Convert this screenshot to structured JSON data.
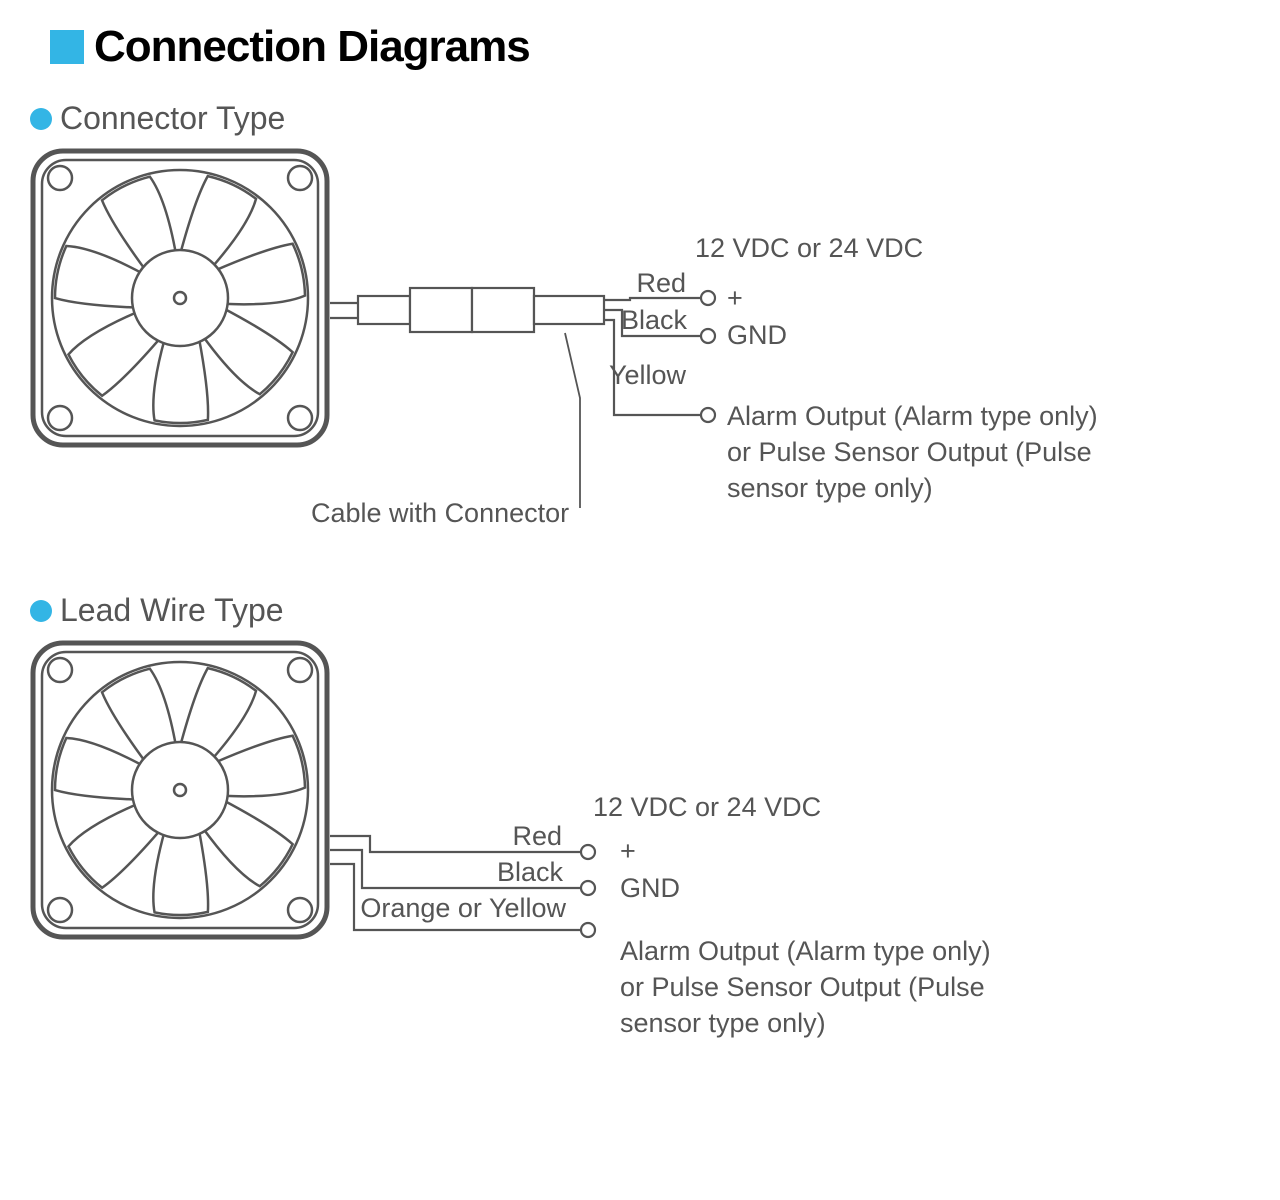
{
  "colors": {
    "accent": "#33b5e5",
    "text": "#555555",
    "title": "#000000",
    "stroke": "#555555",
    "bg": "#ffffff"
  },
  "title": "Connection Diagrams",
  "sections": {
    "connector": {
      "title": "Connector Type",
      "wires": [
        {
          "color": "Red",
          "signal": "+",
          "volt": "12 VDC or 24 VDC"
        },
        {
          "color": "Black",
          "signal": "GND"
        },
        {
          "color": "Yellow",
          "signal": "Alarm Output (Alarm type only)",
          "signal2": "or Pulse Sensor Output (Pulse",
          "signal3": "sensor type only)"
        }
      ],
      "cable_label": "Cable with Connector"
    },
    "leadwire": {
      "title": "Lead Wire Type",
      "wires": [
        {
          "color": "Red",
          "signal": "+",
          "volt": "12 VDC or 24 VDC"
        },
        {
          "color": "Black",
          "signal": "GND"
        },
        {
          "color": "Orange or Yellow",
          "signal": "Alarm Output (Alarm type only)",
          "signal2": "or Pulse Sensor Output (Pulse",
          "signal3": "sensor type only)"
        }
      ]
    }
  },
  "fan": {
    "size": 300,
    "corner_radius": 30,
    "stroke": "#555555",
    "stroke_w_outer": 5,
    "stroke_w_inner": 2.5,
    "hole_r": 12,
    "hub_r": 48,
    "hub_inner_r": 6,
    "blade_count": 7
  },
  "diagram": {
    "wire_stroke_w": 2.2,
    "term_r": 7
  }
}
